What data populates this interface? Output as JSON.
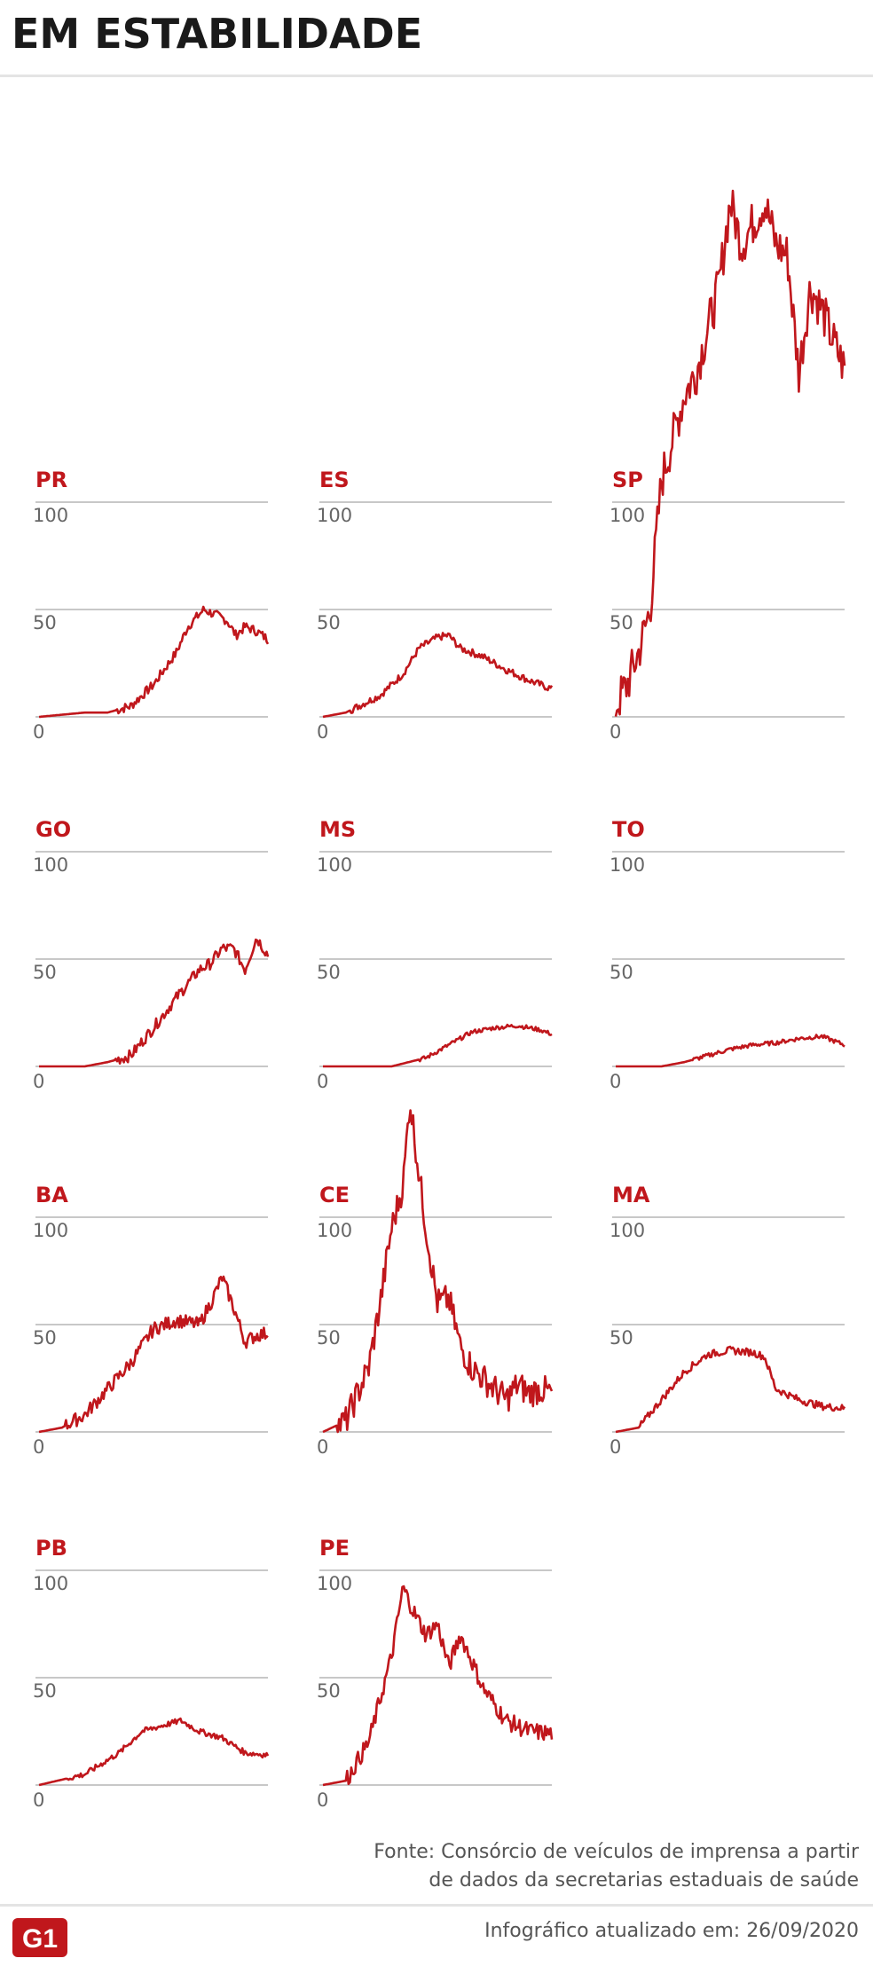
{
  "header": {
    "title": "EM ESTABILIDADE"
  },
  "footer": {
    "source_line1": "Fonte: Consórcio de veículos de imprensa a partir",
    "source_line2": "de dados da secretarias estaduais de saúde",
    "updated": "Infográfico atualizado em: 26/09/2020",
    "logo_text": "G1"
  },
  "colors": {
    "line": "#c0171c",
    "label": "#c0171c",
    "grid": "#b5b5b5",
    "tick": "#666666"
  },
  "chart_data": [
    {
      "type": "line",
      "title": "PR",
      "ylim": [
        0,
        100
      ],
      "yticks": [
        0,
        50,
        100
      ],
      "keypoints": [
        [
          0,
          0
        ],
        [
          0.2,
          2
        ],
        [
          0.3,
          2
        ],
        [
          0.4,
          5
        ],
        [
          0.5,
          15
        ],
        [
          0.6,
          30
        ],
        [
          0.65,
          42
        ],
        [
          0.72,
          50
        ],
        [
          0.78,
          47
        ],
        [
          0.82,
          45
        ],
        [
          0.86,
          38
        ],
        [
          0.9,
          42
        ],
        [
          0.95,
          40
        ],
        [
          1,
          36
        ]
      ]
    },
    {
      "type": "line",
      "title": "ES",
      "ylim": [
        0,
        100
      ],
      "yticks": [
        0,
        50,
        100
      ],
      "keypoints": [
        [
          0,
          0
        ],
        [
          0.1,
          2
        ],
        [
          0.25,
          10
        ],
        [
          0.35,
          20
        ],
        [
          0.42,
          32
        ],
        [
          0.5,
          37
        ],
        [
          0.55,
          38
        ],
        [
          0.6,
          32
        ],
        [
          0.7,
          28
        ],
        [
          0.8,
          22
        ],
        [
          0.9,
          17
        ],
        [
          1,
          13
        ]
      ]
    },
    {
      "type": "line",
      "title": "SP",
      "ylim": [
        0,
        100
      ],
      "yticks": [
        0,
        50,
        100
      ],
      "keypoints": [
        [
          0,
          5
        ],
        [
          0.05,
          15
        ],
        [
          0.1,
          30
        ],
        [
          0.15,
          50
        ],
        [
          0.2,
          110
        ],
        [
          0.25,
          130
        ],
        [
          0.3,
          150
        ],
        [
          0.35,
          160
        ],
        [
          0.4,
          180
        ],
        [
          0.45,
          200
        ],
        [
          0.5,
          240
        ],
        [
          0.55,
          220
        ],
        [
          0.6,
          230
        ],
        [
          0.65,
          240
        ],
        [
          0.7,
          220
        ],
        [
          0.75,
          215
        ],
        [
          0.8,
          160
        ],
        [
          0.85,
          200
        ],
        [
          0.9,
          190
        ],
        [
          0.95,
          175
        ],
        [
          1,
          162
        ]
      ]
    },
    {
      "type": "line",
      "title": "GO",
      "ylim": [
        0,
        100
      ],
      "yticks": [
        0,
        50,
        100
      ],
      "keypoints": [
        [
          0,
          0
        ],
        [
          0.2,
          0
        ],
        [
          0.3,
          2
        ],
        [
          0.4,
          5
        ],
        [
          0.5,
          18
        ],
        [
          0.6,
          32
        ],
        [
          0.7,
          45
        ],
        [
          0.75,
          48
        ],
        [
          0.8,
          55
        ],
        [
          0.85,
          55
        ],
        [
          0.9,
          45
        ],
        [
          0.95,
          60
        ],
        [
          1,
          52
        ]
      ]
    },
    {
      "type": "line",
      "title": "MS",
      "ylim": [
        0,
        100
      ],
      "yticks": [
        0,
        50,
        100
      ],
      "keypoints": [
        [
          0,
          0
        ],
        [
          0.3,
          0
        ],
        [
          0.45,
          4
        ],
        [
          0.55,
          10
        ],
        [
          0.65,
          16
        ],
        [
          0.75,
          18
        ],
        [
          0.85,
          19
        ],
        [
          0.95,
          17
        ],
        [
          1,
          15
        ]
      ]
    },
    {
      "type": "line",
      "title": "TO",
      "ylim": [
        0,
        100
      ],
      "yticks": [
        0,
        50,
        100
      ],
      "keypoints": [
        [
          0,
          0
        ],
        [
          0.2,
          0
        ],
        [
          0.3,
          2
        ],
        [
          0.4,
          5
        ],
        [
          0.5,
          8
        ],
        [
          0.6,
          10
        ],
        [
          0.7,
          11
        ],
        [
          0.8,
          13
        ],
        [
          0.9,
          14
        ],
        [
          1,
          10
        ]
      ]
    },
    {
      "type": "line",
      "title": "BA",
      "ylim": [
        0,
        100
      ],
      "yticks": [
        0,
        50,
        100
      ],
      "keypoints": [
        [
          0,
          0
        ],
        [
          0.1,
          2
        ],
        [
          0.2,
          8
        ],
        [
          0.3,
          20
        ],
        [
          0.4,
          32
        ],
        [
          0.5,
          48
        ],
        [
          0.6,
          52
        ],
        [
          0.7,
          50
        ],
        [
          0.75,
          60
        ],
        [
          0.8,
          72
        ],
        [
          0.85,
          58
        ],
        [
          0.9,
          42
        ],
        [
          0.95,
          45
        ],
        [
          1,
          46
        ]
      ]
    },
    {
      "type": "line",
      "title": "CE",
      "ylim": [
        0,
        100
      ],
      "yticks": [
        0,
        50,
        100
      ],
      "keypoints": [
        [
          0,
          0
        ],
        [
          0.1,
          5
        ],
        [
          0.2,
          30
        ],
        [
          0.25,
          60
        ],
        [
          0.3,
          95
        ],
        [
          0.35,
          115
        ],
        [
          0.38,
          155
        ],
        [
          0.42,
          120
        ],
        [
          0.45,
          95
        ],
        [
          0.5,
          60
        ],
        [
          0.55,
          62
        ],
        [
          0.6,
          40
        ],
        [
          0.65,
          30
        ],
        [
          0.7,
          25
        ],
        [
          0.75,
          20
        ],
        [
          0.8,
          15
        ],
        [
          0.85,
          22
        ],
        [
          0.9,
          18
        ],
        [
          0.95,
          20
        ],
        [
          1,
          18
        ]
      ]
    },
    {
      "type": "line",
      "title": "MA",
      "ylim": [
        0,
        100
      ],
      "yticks": [
        0,
        50,
        100
      ],
      "keypoints": [
        [
          0,
          0
        ],
        [
          0.1,
          2
        ],
        [
          0.2,
          15
        ],
        [
          0.3,
          28
        ],
        [
          0.4,
          36
        ],
        [
          0.5,
          38
        ],
        [
          0.6,
          37
        ],
        [
          0.65,
          35
        ],
        [
          0.7,
          20
        ],
        [
          0.8,
          15
        ],
        [
          0.9,
          12
        ],
        [
          1,
          11
        ]
      ]
    },
    {
      "type": "line",
      "title": "PB",
      "ylim": [
        0,
        100
      ],
      "yticks": [
        0,
        50,
        100
      ],
      "keypoints": [
        [
          0,
          0
        ],
        [
          0.2,
          5
        ],
        [
          0.35,
          15
        ],
        [
          0.45,
          25
        ],
        [
          0.55,
          28
        ],
        [
          0.62,
          30
        ],
        [
          0.7,
          25
        ],
        [
          0.8,
          22
        ],
        [
          0.9,
          15
        ],
        [
          1,
          14
        ]
      ]
    },
    {
      "type": "line",
      "title": "PE",
      "ylim": [
        0,
        100
      ],
      "yticks": [
        0,
        50,
        100
      ],
      "keypoints": [
        [
          0,
          0
        ],
        [
          0.1,
          2
        ],
        [
          0.2,
          20
        ],
        [
          0.3,
          60
        ],
        [
          0.35,
          92
        ],
        [
          0.4,
          80
        ],
        [
          0.45,
          70
        ],
        [
          0.5,
          75
        ],
        [
          0.55,
          55
        ],
        [
          0.6,
          70
        ],
        [
          0.65,
          58
        ],
        [
          0.7,
          45
        ],
        [
          0.8,
          30
        ],
        [
          0.9,
          25
        ],
        [
          1,
          24
        ]
      ]
    }
  ]
}
